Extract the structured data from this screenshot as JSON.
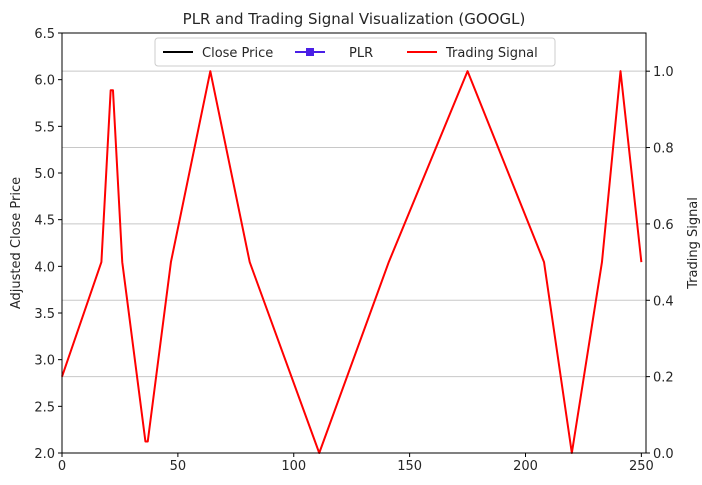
{
  "chart_data": {
    "type": "line",
    "title": "PLR and Trading Signal Visualization (GOOGL)",
    "xlabel": "",
    "ylabel": "Adjusted Close Price",
    "ylabel_right": "Trading Signal",
    "xlim": [
      0,
      252
    ],
    "ylim": [
      2.0,
      6.5
    ],
    "ylim_right": [
      0.0,
      1.1
    ],
    "x_ticks": [
      0,
      50,
      100,
      150,
      200,
      250
    ],
    "y_ticks": [
      2.0,
      2.5,
      3.0,
      3.5,
      4.0,
      4.5,
      5.0,
      5.5,
      6.0,
      6.5
    ],
    "y_ticks_right": [
      0.0,
      0.2,
      0.4,
      0.6,
      0.8,
      1.0
    ],
    "grid": "horizontal-right-axis",
    "legend": {
      "placement": "upper-center",
      "entries": [
        {
          "label": "Close Price",
          "color": "#000000",
          "marker": "none"
        },
        {
          "label": "PLR",
          "color": "#4a1fe6",
          "marker": "square"
        },
        {
          "label": "Trading Signal",
          "color": "#ff0000",
          "marker": "none"
        }
      ]
    },
    "series": [
      {
        "name": "Trading Signal",
        "axis": "right",
        "color": "#ff0000",
        "x": [
          0,
          17,
          21,
          22,
          26,
          36,
          37,
          47,
          64,
          81,
          111,
          141,
          175,
          208,
          220,
          233,
          241,
          250
        ],
        "y": [
          0.2,
          0.5,
          0.95,
          0.95,
          0.5,
          0.03,
          0.03,
          0.5,
          1.0,
          0.5,
          0.0,
          0.5,
          1.0,
          0.5,
          0.0,
          0.5,
          1.0,
          0.5
        ]
      }
    ]
  }
}
